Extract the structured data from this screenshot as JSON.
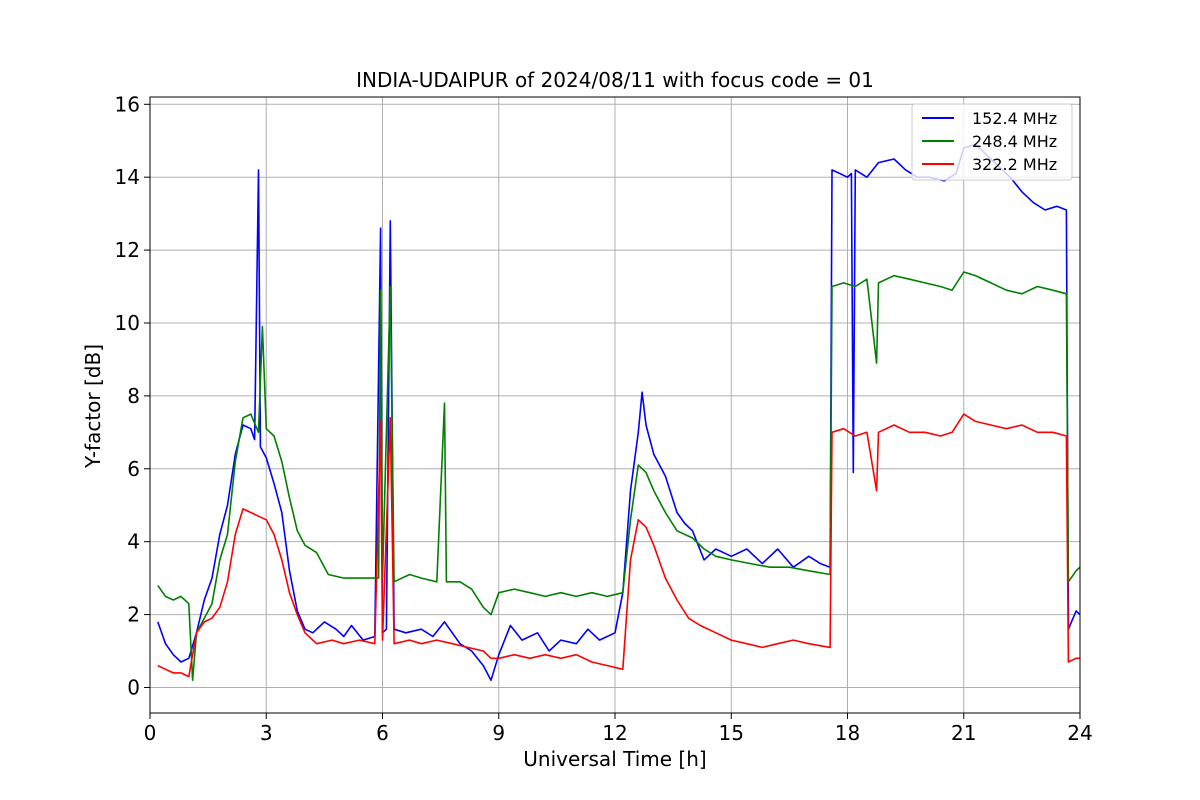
{
  "chart_data": {
    "type": "line",
    "title": "INDIA-UDAIPUR of 2024/08/11 with focus code = 01",
    "xlabel": "Universal Time [h]",
    "ylabel": "Y-factor [dB]",
    "xlim": [
      0,
      24
    ],
    "ylim": [
      -0.7,
      16.2
    ],
    "xticks": [
      0,
      3,
      6,
      9,
      12,
      15,
      18,
      21,
      24
    ],
    "yticks": [
      0,
      2,
      4,
      6,
      8,
      10,
      12,
      14,
      16
    ],
    "grid": true,
    "legend_position": "top-right",
    "series": [
      {
        "name": "152.4 MHz",
        "color": "#0000ff",
        "points": [
          [
            0.2,
            1.8
          ],
          [
            0.4,
            1.2
          ],
          [
            0.6,
            0.9
          ],
          [
            0.8,
            0.7
          ],
          [
            1.0,
            0.8
          ],
          [
            1.2,
            1.5
          ],
          [
            1.4,
            2.4
          ],
          [
            1.6,
            3.0
          ],
          [
            1.8,
            4.2
          ],
          [
            2.0,
            5.0
          ],
          [
            2.2,
            6.4
          ],
          [
            2.4,
            7.2
          ],
          [
            2.6,
            7.1
          ],
          [
            2.7,
            6.8
          ],
          [
            2.8,
            14.2
          ],
          [
            2.85,
            6.6
          ],
          [
            3.0,
            6.3
          ],
          [
            3.2,
            5.6
          ],
          [
            3.4,
            4.8
          ],
          [
            3.6,
            3.2
          ],
          [
            3.8,
            2.1
          ],
          [
            4.0,
            1.6
          ],
          [
            4.2,
            1.5
          ],
          [
            4.5,
            1.8
          ],
          [
            4.8,
            1.6
          ],
          [
            5.0,
            1.4
          ],
          [
            5.2,
            1.7
          ],
          [
            5.5,
            1.3
          ],
          [
            5.8,
            1.4
          ],
          [
            5.95,
            12.6
          ],
          [
            6.0,
            1.5
          ],
          [
            6.1,
            1.6
          ],
          [
            6.2,
            12.8
          ],
          [
            6.3,
            1.6
          ],
          [
            6.6,
            1.5
          ],
          [
            7.0,
            1.6
          ],
          [
            7.3,
            1.4
          ],
          [
            7.6,
            1.8
          ],
          [
            8.0,
            1.2
          ],
          [
            8.3,
            1.0
          ],
          [
            8.6,
            0.6
          ],
          [
            8.8,
            0.2
          ],
          [
            9.0,
            0.9
          ],
          [
            9.3,
            1.7
          ],
          [
            9.6,
            1.3
          ],
          [
            10.0,
            1.5
          ],
          [
            10.3,
            1.0
          ],
          [
            10.6,
            1.3
          ],
          [
            11.0,
            1.2
          ],
          [
            11.3,
            1.6
          ],
          [
            11.6,
            1.3
          ],
          [
            12.0,
            1.5
          ],
          [
            12.2,
            2.6
          ],
          [
            12.4,
            5.4
          ],
          [
            12.6,
            7.0
          ],
          [
            12.7,
            8.1
          ],
          [
            12.8,
            7.2
          ],
          [
            13.0,
            6.4
          ],
          [
            13.3,
            5.8
          ],
          [
            13.6,
            4.8
          ],
          [
            13.8,
            4.5
          ],
          [
            14.0,
            4.3
          ],
          [
            14.3,
            3.5
          ],
          [
            14.6,
            3.8
          ],
          [
            15.0,
            3.6
          ],
          [
            15.4,
            3.8
          ],
          [
            15.8,
            3.4
          ],
          [
            16.2,
            3.8
          ],
          [
            16.6,
            3.3
          ],
          [
            17.0,
            3.6
          ],
          [
            17.3,
            3.4
          ],
          [
            17.55,
            3.3
          ],
          [
            17.6,
            14.2
          ],
          [
            17.8,
            14.1
          ],
          [
            18.0,
            14.0
          ],
          [
            18.1,
            14.1
          ],
          [
            18.15,
            5.9
          ],
          [
            18.2,
            14.2
          ],
          [
            18.5,
            14.0
          ],
          [
            18.8,
            14.4
          ],
          [
            19.2,
            14.5
          ],
          [
            19.5,
            14.2
          ],
          [
            19.8,
            14.0
          ],
          [
            20.1,
            14.0
          ],
          [
            20.5,
            13.9
          ],
          [
            20.8,
            14.1
          ],
          [
            21.0,
            14.8
          ],
          [
            21.3,
            14.9
          ],
          [
            21.6,
            14.6
          ],
          [
            21.9,
            14.3
          ],
          [
            22.2,
            14.0
          ],
          [
            22.5,
            13.6
          ],
          [
            22.8,
            13.3
          ],
          [
            23.1,
            13.1
          ],
          [
            23.4,
            13.2
          ],
          [
            23.65,
            13.1
          ],
          [
            23.7,
            1.6
          ],
          [
            23.9,
            2.1
          ],
          [
            24.0,
            2.0
          ]
        ]
      },
      {
        "name": "248.4 MHz",
        "color": "#008000",
        "points": [
          [
            0.2,
            2.8
          ],
          [
            0.4,
            2.5
          ],
          [
            0.6,
            2.4
          ],
          [
            0.8,
            2.5
          ],
          [
            1.0,
            2.3
          ],
          [
            1.1,
            0.2
          ],
          [
            1.2,
            1.5
          ],
          [
            1.4,
            1.9
          ],
          [
            1.6,
            2.3
          ],
          [
            1.8,
            3.5
          ],
          [
            2.0,
            4.2
          ],
          [
            2.2,
            6.2
          ],
          [
            2.4,
            7.4
          ],
          [
            2.6,
            7.5
          ],
          [
            2.8,
            7.0
          ],
          [
            2.9,
            9.9
          ],
          [
            3.0,
            7.1
          ],
          [
            3.2,
            6.9
          ],
          [
            3.4,
            6.2
          ],
          [
            3.6,
            5.2
          ],
          [
            3.8,
            4.3
          ],
          [
            4.0,
            3.9
          ],
          [
            4.3,
            3.7
          ],
          [
            4.6,
            3.1
          ],
          [
            5.0,
            3.0
          ],
          [
            5.5,
            3.0
          ],
          [
            5.9,
            3.0
          ],
          [
            5.95,
            10.9
          ],
          [
            6.0,
            3.0
          ],
          [
            6.2,
            11.0
          ],
          [
            6.3,
            2.9
          ],
          [
            6.7,
            3.1
          ],
          [
            7.0,
            3.0
          ],
          [
            7.4,
            2.9
          ],
          [
            7.6,
            7.8
          ],
          [
            7.65,
            2.9
          ],
          [
            8.0,
            2.9
          ],
          [
            8.3,
            2.7
          ],
          [
            8.6,
            2.2
          ],
          [
            8.8,
            2.0
          ],
          [
            9.0,
            2.6
          ],
          [
            9.4,
            2.7
          ],
          [
            9.8,
            2.6
          ],
          [
            10.2,
            2.5
          ],
          [
            10.6,
            2.6
          ],
          [
            11.0,
            2.5
          ],
          [
            11.4,
            2.6
          ],
          [
            11.8,
            2.5
          ],
          [
            12.2,
            2.6
          ],
          [
            12.4,
            4.6
          ],
          [
            12.6,
            6.1
          ],
          [
            12.8,
            5.9
          ],
          [
            13.0,
            5.4
          ],
          [
            13.3,
            4.8
          ],
          [
            13.6,
            4.3
          ],
          [
            14.0,
            4.1
          ],
          [
            14.3,
            3.8
          ],
          [
            14.6,
            3.6
          ],
          [
            15.0,
            3.5
          ],
          [
            15.5,
            3.4
          ],
          [
            16.0,
            3.3
          ],
          [
            16.5,
            3.3
          ],
          [
            17.0,
            3.2
          ],
          [
            17.55,
            3.1
          ],
          [
            17.6,
            11.0
          ],
          [
            17.9,
            11.1
          ],
          [
            18.2,
            11.0
          ],
          [
            18.5,
            11.2
          ],
          [
            18.75,
            8.9
          ],
          [
            18.8,
            11.1
          ],
          [
            19.2,
            11.3
          ],
          [
            19.6,
            11.2
          ],
          [
            20.0,
            11.1
          ],
          [
            20.4,
            11.0
          ],
          [
            20.7,
            10.9
          ],
          [
            21.0,
            11.4
          ],
          [
            21.3,
            11.3
          ],
          [
            21.7,
            11.1
          ],
          [
            22.1,
            10.9
          ],
          [
            22.5,
            10.8
          ],
          [
            22.9,
            11.0
          ],
          [
            23.3,
            10.9
          ],
          [
            23.65,
            10.8
          ],
          [
            23.7,
            2.9
          ],
          [
            23.9,
            3.2
          ],
          [
            24.0,
            3.3
          ]
        ]
      },
      {
        "name": "322.2 MHz",
        "color": "#ff0000",
        "points": [
          [
            0.2,
            0.6
          ],
          [
            0.4,
            0.5
          ],
          [
            0.6,
            0.4
          ],
          [
            0.8,
            0.4
          ],
          [
            1.0,
            0.3
          ],
          [
            1.1,
            0.9
          ],
          [
            1.2,
            1.5
          ],
          [
            1.4,
            1.8
          ],
          [
            1.6,
            1.9
          ],
          [
            1.8,
            2.2
          ],
          [
            2.0,
            2.9
          ],
          [
            2.2,
            4.2
          ],
          [
            2.4,
            4.9
          ],
          [
            2.6,
            4.8
          ],
          [
            2.8,
            4.7
          ],
          [
            3.0,
            4.6
          ],
          [
            3.2,
            4.2
          ],
          [
            3.4,
            3.5
          ],
          [
            3.6,
            2.6
          ],
          [
            3.8,
            2.0
          ],
          [
            4.0,
            1.5
          ],
          [
            4.3,
            1.2
          ],
          [
            4.7,
            1.3
          ],
          [
            5.0,
            1.2
          ],
          [
            5.4,
            1.3
          ],
          [
            5.8,
            1.2
          ],
          [
            5.95,
            7.3
          ],
          [
            6.0,
            1.3
          ],
          [
            6.2,
            7.4
          ],
          [
            6.3,
            1.2
          ],
          [
            6.7,
            1.3
          ],
          [
            7.0,
            1.2
          ],
          [
            7.4,
            1.3
          ],
          [
            7.8,
            1.2
          ],
          [
            8.2,
            1.1
          ],
          [
            8.6,
            1.0
          ],
          [
            8.8,
            0.8
          ],
          [
            9.0,
            0.8
          ],
          [
            9.4,
            0.9
          ],
          [
            9.8,
            0.8
          ],
          [
            10.2,
            0.9
          ],
          [
            10.6,
            0.8
          ],
          [
            11.0,
            0.9
          ],
          [
            11.4,
            0.7
          ],
          [
            11.8,
            0.6
          ],
          [
            12.2,
            0.5
          ],
          [
            12.4,
            3.5
          ],
          [
            12.6,
            4.6
          ],
          [
            12.8,
            4.4
          ],
          [
            13.0,
            3.9
          ],
          [
            13.3,
            3.0
          ],
          [
            13.6,
            2.4
          ],
          [
            13.9,
            1.9
          ],
          [
            14.2,
            1.7
          ],
          [
            14.6,
            1.5
          ],
          [
            15.0,
            1.3
          ],
          [
            15.4,
            1.2
          ],
          [
            15.8,
            1.1
          ],
          [
            16.2,
            1.2
          ],
          [
            16.6,
            1.3
          ],
          [
            17.0,
            1.2
          ],
          [
            17.55,
            1.1
          ],
          [
            17.6,
            7.0
          ],
          [
            17.9,
            7.1
          ],
          [
            18.2,
            6.9
          ],
          [
            18.5,
            7.0
          ],
          [
            18.75,
            5.4
          ],
          [
            18.8,
            7.0
          ],
          [
            19.2,
            7.2
          ],
          [
            19.6,
            7.0
          ],
          [
            20.0,
            7.0
          ],
          [
            20.4,
            6.9
          ],
          [
            20.7,
            7.0
          ],
          [
            21.0,
            7.5
          ],
          [
            21.3,
            7.3
          ],
          [
            21.7,
            7.2
          ],
          [
            22.1,
            7.1
          ],
          [
            22.5,
            7.2
          ],
          [
            22.9,
            7.0
          ],
          [
            23.3,
            7.0
          ],
          [
            23.65,
            6.9
          ],
          [
            23.7,
            0.7
          ],
          [
            23.9,
            0.8
          ],
          [
            24.0,
            0.8
          ]
        ]
      }
    ]
  }
}
